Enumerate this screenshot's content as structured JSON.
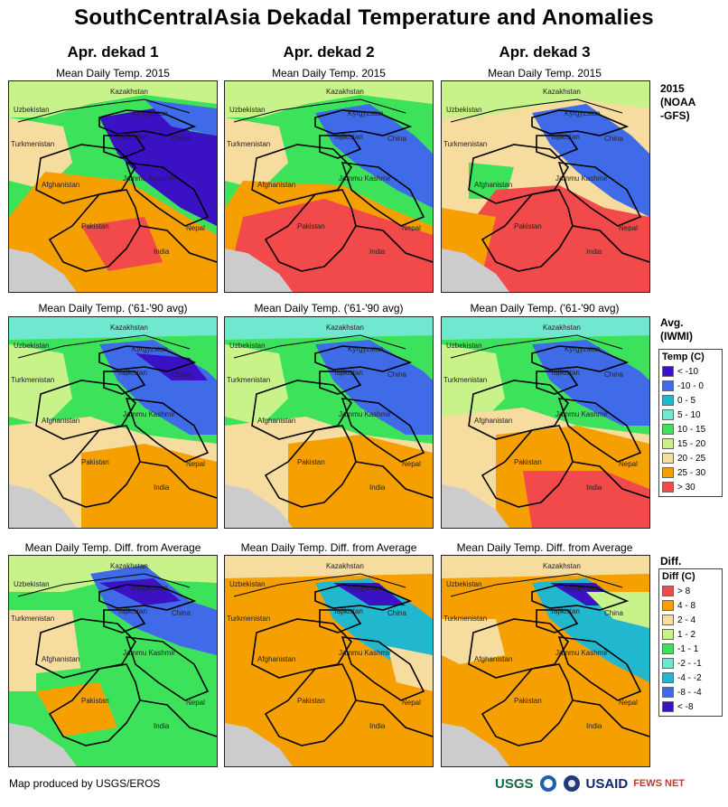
{
  "title": "SouthCentralAsia Dekadal Temperature and Anomalies",
  "columns": [
    "Apr. dekad 1",
    "Apr. dekad 2",
    "Apr. dekad 3"
  ],
  "rows": [
    {
      "subtitle": "Mean Daily Temp. 2015",
      "label_lines": [
        "2015",
        "(NOAA",
        "-GFS)"
      ]
    },
    {
      "subtitle": "Mean Daily Temp. ('61-'90 avg)",
      "label_lines": [
        "Avg.",
        "(IWMI)"
      ]
    },
    {
      "subtitle": "Mean Daily Temp. Diff. from Average",
      "label_lines": [
        "Diff."
      ]
    }
  ],
  "place_labels": [
    "Kazakhstan",
    "Uzbekistan",
    "Kyrgyzstan",
    "Turkmenistan",
    "Tajikistan",
    "China",
    "Afghanistan",
    "Jammu Kashmir",
    "Pakistan",
    "Nepal",
    "India"
  ],
  "temp_legend": {
    "title": "Temp (C)",
    "items": [
      {
        "label": "< -10",
        "color": "#3a12c4"
      },
      {
        "label": "-10 - 0",
        "color": "#3f6be8"
      },
      {
        "label": "0 - 5",
        "color": "#21b7cf"
      },
      {
        "label": "5 - 10",
        "color": "#6fe8cf"
      },
      {
        "label": "10 - 15",
        "color": "#3ce35a"
      },
      {
        "label": "15 - 20",
        "color": "#c8f28a"
      },
      {
        "label": "20 - 25",
        "color": "#f7dca0"
      },
      {
        "label": "25 - 30",
        "color": "#f5a000"
      },
      {
        "label": "> 30",
        "color": "#f24a4a"
      }
    ]
  },
  "diff_legend": {
    "title": "Diff (C)",
    "items": [
      {
        "label": "> 8",
        "color": "#f24a4a"
      },
      {
        "label": "4 - 8",
        "color": "#f5a000"
      },
      {
        "label": "2 - 4",
        "color": "#f7dca0"
      },
      {
        "label": "1 - 2",
        "color": "#c8f28a"
      },
      {
        "label": "-1 - 1",
        "color": "#3ce35a"
      },
      {
        "label": "-2 - -1",
        "color": "#6fe8cf"
      },
      {
        "label": "-4 - -2",
        "color": "#21b7cf"
      },
      {
        "label": "-8 - -4",
        "color": "#3f6be8"
      },
      {
        "label": "< -8",
        "color": "#3a12c4"
      }
    ]
  },
  "credit": "Map produced by USGS/EROS",
  "logos": {
    "usgs": "USGS",
    "usaid": "USAID",
    "fewsnet": "FEWS NET"
  }
}
